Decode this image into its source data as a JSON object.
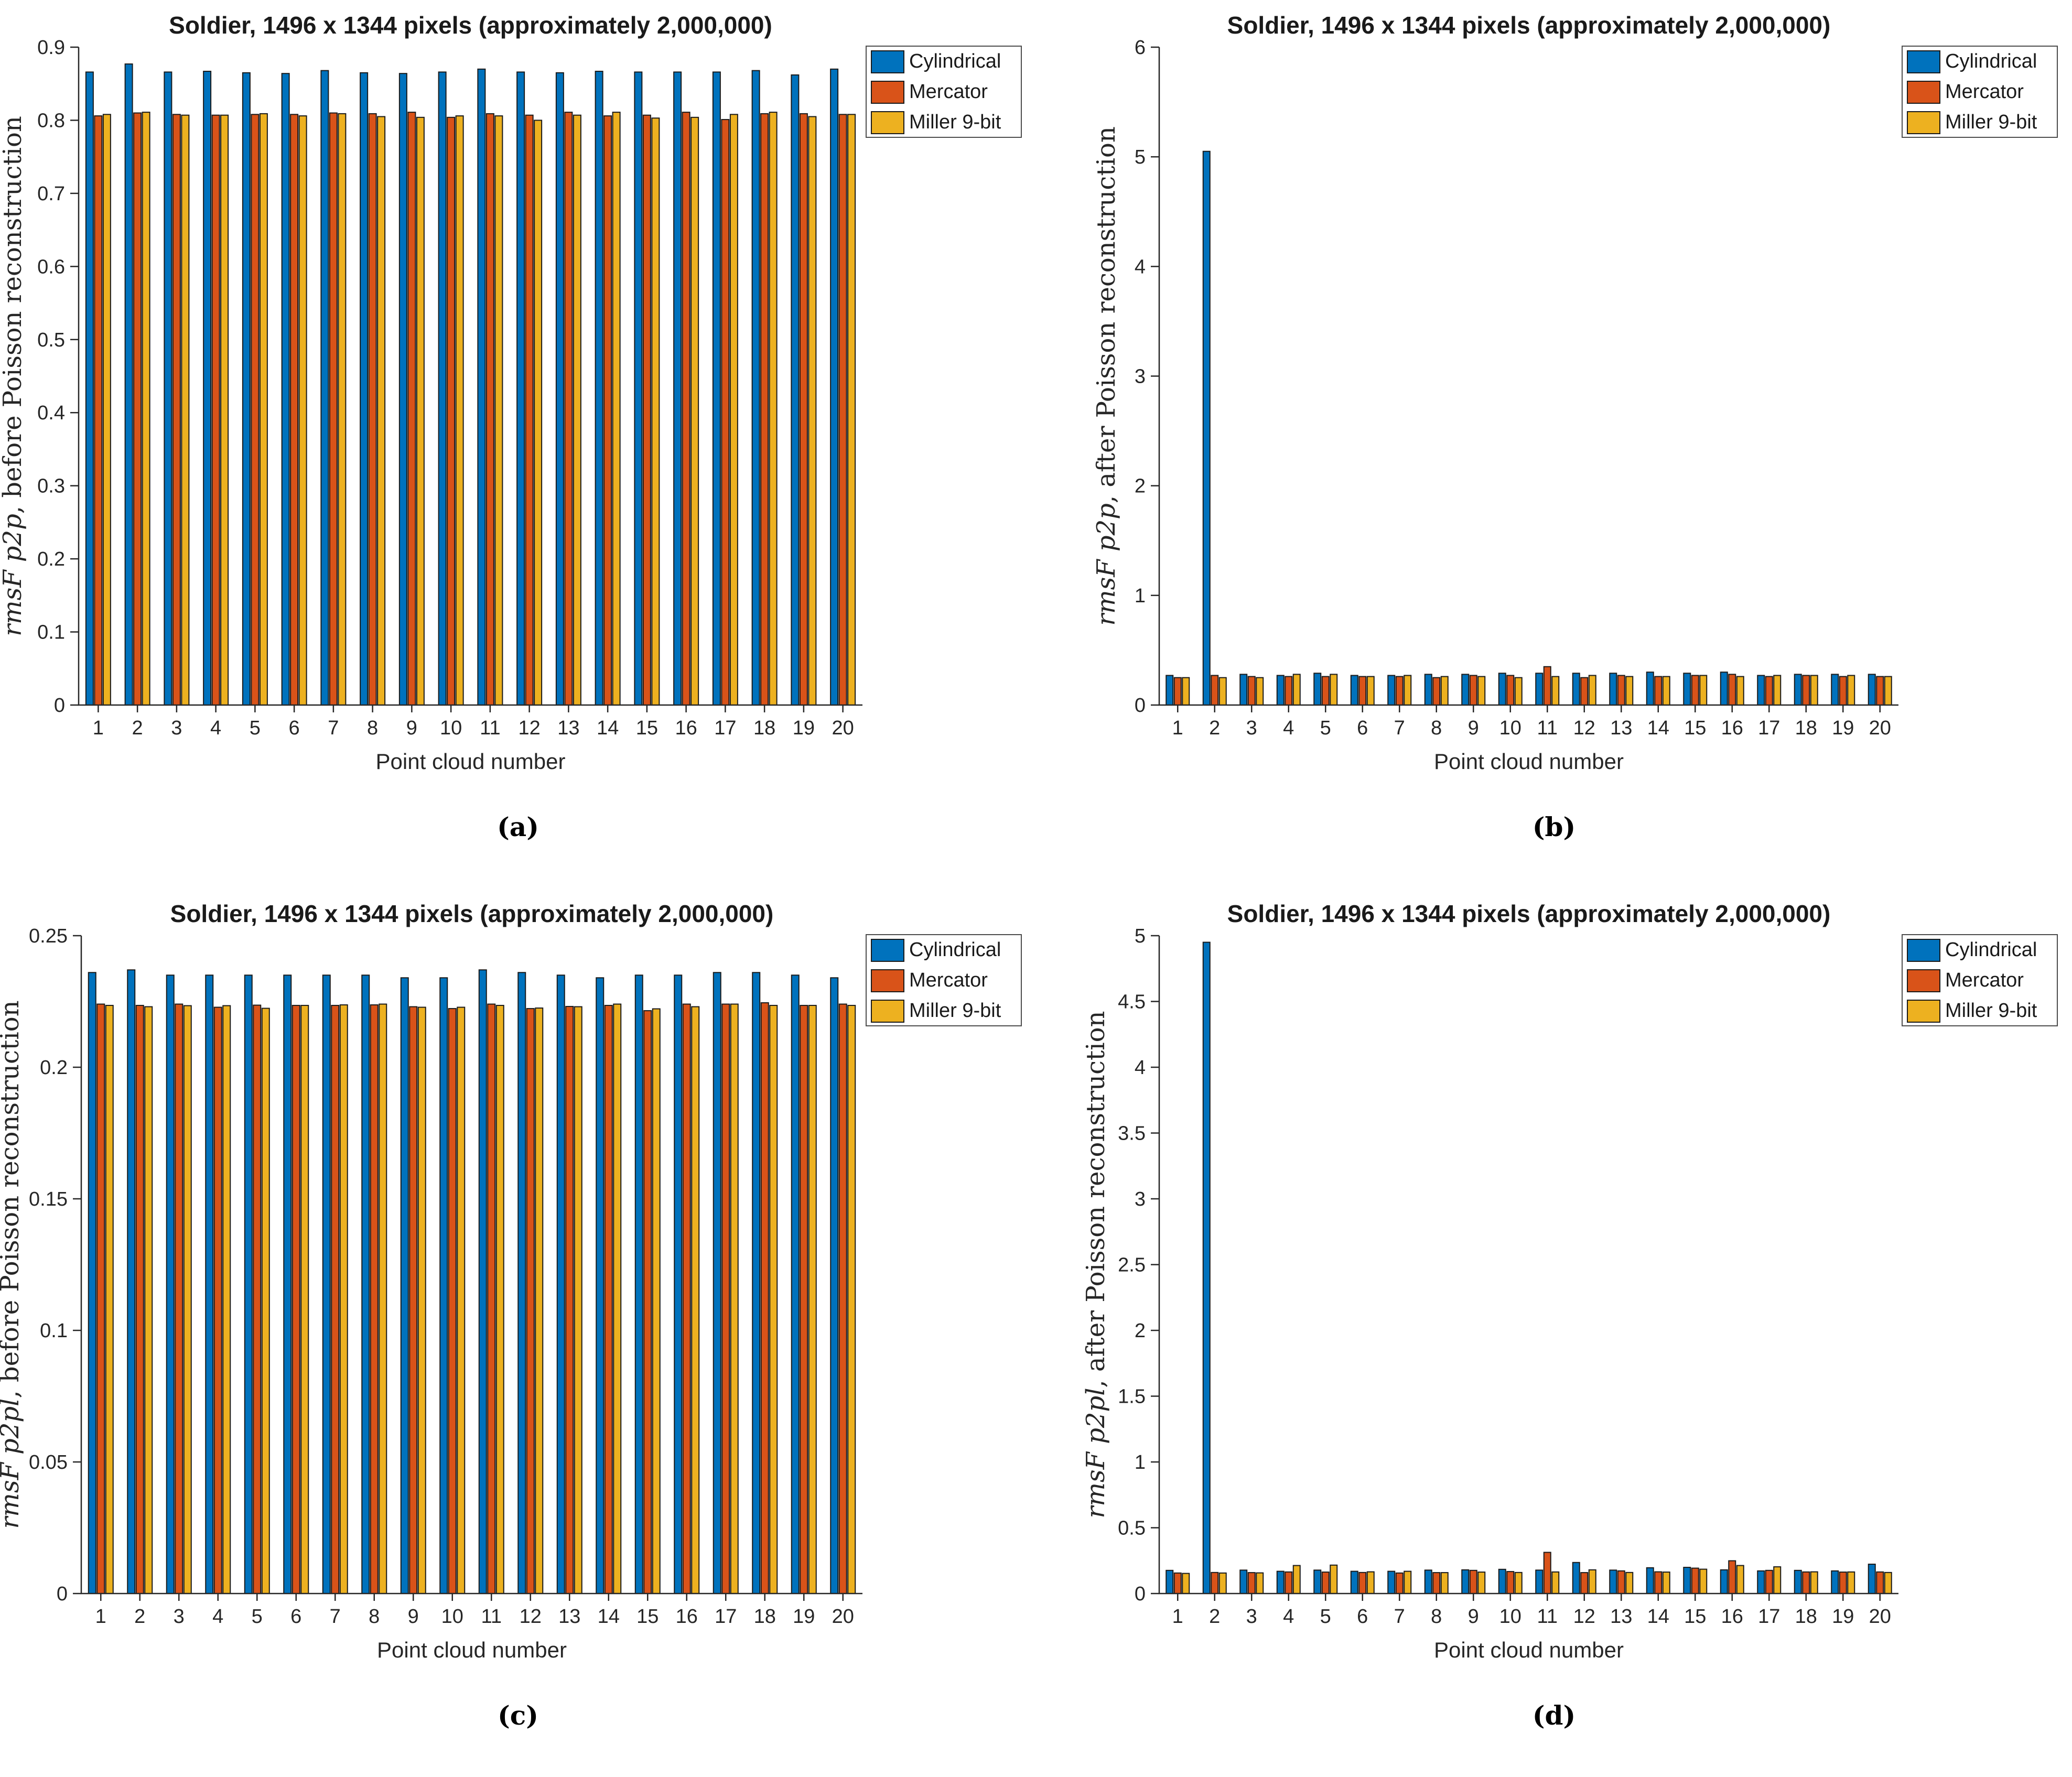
{
  "page": {
    "background": "#ffffff"
  },
  "colors": {
    "cylindrical": "#0072BD",
    "mercator": "#D95319",
    "miller": "#EDB120",
    "bar_edge": "#1a1a1a",
    "axis": "#262626",
    "legend_border": "#4d4d4d"
  },
  "legend": {
    "labels": [
      "Cylindrical",
      "Mercator",
      "Miller 9-bit"
    ],
    "position": "right-top-outside"
  },
  "chart_data": [
    {
      "type": "bar",
      "caption": "(a)",
      "title": "Soldier, 1496 x 1344 pixels (approximately 2,000,000)",
      "xlabel": "Point cloud number",
      "ylabel_math": "rmsF p2p",
      "ylabel_rest": ", before Poisson reconstruction",
      "grid": false,
      "categories": [
        "1",
        "2",
        "3",
        "4",
        "5",
        "6",
        "7",
        "8",
        "9",
        "10",
        "11",
        "12",
        "13",
        "14",
        "15",
        "16",
        "17",
        "18",
        "19",
        "20"
      ],
      "ylim": [
        0,
        0.9
      ],
      "yticks": [
        "0",
        "0.1",
        "0.2",
        "0.3",
        "0.4",
        "0.5",
        "0.6",
        "0.7",
        "0.8",
        "0.9"
      ],
      "series": [
        {
          "name": "Cylindrical",
          "color_key": "cylindrical",
          "values": [
            0.866,
            0.877,
            0.866,
            0.867,
            0.865,
            0.864,
            0.868,
            0.865,
            0.864,
            0.866,
            0.87,
            0.866,
            0.865,
            0.867,
            0.866,
            0.866,
            0.866,
            0.868,
            0.862,
            0.87
          ]
        },
        {
          "name": "Mercator",
          "color_key": "mercator",
          "values": [
            0.806,
            0.81,
            0.808,
            0.807,
            0.808,
            0.808,
            0.81,
            0.809,
            0.811,
            0.804,
            0.809,
            0.807,
            0.811,
            0.806,
            0.807,
            0.811,
            0.801,
            0.809,
            0.809,
            0.808
          ]
        },
        {
          "name": "Miller 9-bit",
          "color_key": "miller",
          "values": [
            0.808,
            0.811,
            0.807,
            0.807,
            0.809,
            0.806,
            0.809,
            0.805,
            0.804,
            0.806,
            0.806,
            0.8,
            0.807,
            0.811,
            0.803,
            0.804,
            0.808,
            0.811,
            0.805,
            0.808
          ]
        }
      ]
    },
    {
      "type": "bar",
      "caption": "(b)",
      "title": "Soldier, 1496 x 1344 pixels (approximately 2,000,000)",
      "xlabel": "Point cloud number",
      "ylabel_math": "rmsF p2p",
      "ylabel_rest": ", after Poisson reconstruction",
      "grid": false,
      "categories": [
        "1",
        "2",
        "3",
        "4",
        "5",
        "6",
        "7",
        "8",
        "9",
        "10",
        "11",
        "12",
        "13",
        "14",
        "15",
        "16",
        "17",
        "18",
        "19",
        "20"
      ],
      "ylim": [
        0,
        6
      ],
      "yticks": [
        "0",
        "1",
        "2",
        "3",
        "4",
        "5",
        "6"
      ],
      "series": [
        {
          "name": "Cylindrical",
          "color_key": "cylindrical",
          "values": [
            0.27,
            5.05,
            0.28,
            0.27,
            0.29,
            0.27,
            0.27,
            0.28,
            0.28,
            0.29,
            0.29,
            0.29,
            0.29,
            0.3,
            0.29,
            0.3,
            0.27,
            0.28,
            0.28,
            0.28
          ]
        },
        {
          "name": "Mercator",
          "color_key": "mercator",
          "values": [
            0.25,
            0.27,
            0.26,
            0.26,
            0.26,
            0.26,
            0.26,
            0.25,
            0.27,
            0.27,
            0.35,
            0.25,
            0.27,
            0.26,
            0.27,
            0.28,
            0.26,
            0.27,
            0.26,
            0.26
          ]
        },
        {
          "name": "Miller 9-bit",
          "color_key": "miller",
          "values": [
            0.25,
            0.25,
            0.25,
            0.28,
            0.28,
            0.26,
            0.27,
            0.26,
            0.26,
            0.25,
            0.26,
            0.27,
            0.26,
            0.26,
            0.27,
            0.26,
            0.27,
            0.27,
            0.27,
            0.26
          ]
        }
      ]
    },
    {
      "type": "bar",
      "caption": "(c)",
      "title": "Soldier, 1496 x 1344 pixels (approximately 2,000,000)",
      "xlabel": "Point cloud number",
      "ylabel_math": "rmsF p2pl",
      "ylabel_rest": ", before Poisson reconstruction",
      "grid": false,
      "categories": [
        "1",
        "2",
        "3",
        "4",
        "5",
        "6",
        "7",
        "8",
        "9",
        "10",
        "11",
        "12",
        "13",
        "14",
        "15",
        "16",
        "17",
        "18",
        "19",
        "20"
      ],
      "ylim": [
        0,
        0.25
      ],
      "yticks": [
        "0",
        "0.05",
        "0.1",
        "0.15",
        "0.2",
        "0.25"
      ],
      "series": [
        {
          "name": "Cylindrical",
          "color_key": "cylindrical",
          "values": [
            0.236,
            0.237,
            0.235,
            0.235,
            0.235,
            0.235,
            0.235,
            0.235,
            0.234,
            0.234,
            0.237,
            0.236,
            0.235,
            0.234,
            0.235,
            0.235,
            0.236,
            0.236,
            0.235,
            0.234
          ]
        },
        {
          "name": "Mercator",
          "color_key": "mercator",
          "values": [
            0.224,
            0.2235,
            0.224,
            0.2228,
            0.2236,
            0.2235,
            0.2235,
            0.2237,
            0.223,
            0.2223,
            0.224,
            0.2223,
            0.2231,
            0.2235,
            0.2215,
            0.224,
            0.224,
            0.2245,
            0.2235,
            0.224
          ]
        },
        {
          "name": "Miller 9-bit",
          "color_key": "miller",
          "values": [
            0.2235,
            0.223,
            0.2234,
            0.2234,
            0.2224,
            0.2235,
            0.2237,
            0.224,
            0.2228,
            0.2228,
            0.2235,
            0.2225,
            0.223,
            0.224,
            0.2222,
            0.223,
            0.224,
            0.2235,
            0.2235,
            0.2235
          ]
        }
      ]
    },
    {
      "type": "bar",
      "caption": "(d)",
      "title": "Soldier, 1496 x 1344 pixels (approximately 2,000,000)",
      "xlabel": "Point cloud number",
      "ylabel_math": "rmsF p2pl",
      "ylabel_rest": ", after Poisson reconstruction",
      "grid": false,
      "categories": [
        "1",
        "2",
        "3",
        "4",
        "5",
        "6",
        "7",
        "8",
        "9",
        "10",
        "11",
        "12",
        "13",
        "14",
        "15",
        "16",
        "17",
        "18",
        "19",
        "20"
      ],
      "ylim": [
        0,
        5
      ],
      "yticks": [
        "0",
        "0.5",
        "1",
        "1.5",
        "2",
        "2.5",
        "3",
        "3.5",
        "4",
        "4.5",
        "5"
      ],
      "series": [
        {
          "name": "Cylindrical",
          "color_key": "cylindrical",
          "values": [
            0.176,
            4.95,
            0.178,
            0.169,
            0.178,
            0.169,
            0.169,
            0.178,
            0.18,
            0.184,
            0.178,
            0.236,
            0.178,
            0.196,
            0.199,
            0.18,
            0.172,
            0.176,
            0.172,
            0.223
          ]
        },
        {
          "name": "Mercator",
          "color_key": "mercator",
          "values": [
            0.156,
            0.16,
            0.159,
            0.164,
            0.163,
            0.16,
            0.156,
            0.159,
            0.176,
            0.167,
            0.313,
            0.159,
            0.172,
            0.165,
            0.193,
            0.249,
            0.176,
            0.164,
            0.163,
            0.164
          ]
        },
        {
          "name": "Miller 9-bit",
          "color_key": "miller",
          "values": [
            0.153,
            0.156,
            0.157,
            0.213,
            0.216,
            0.165,
            0.169,
            0.159,
            0.163,
            0.16,
            0.164,
            0.18,
            0.16,
            0.163,
            0.185,
            0.213,
            0.203,
            0.165,
            0.164,
            0.16
          ]
        }
      ]
    }
  ]
}
